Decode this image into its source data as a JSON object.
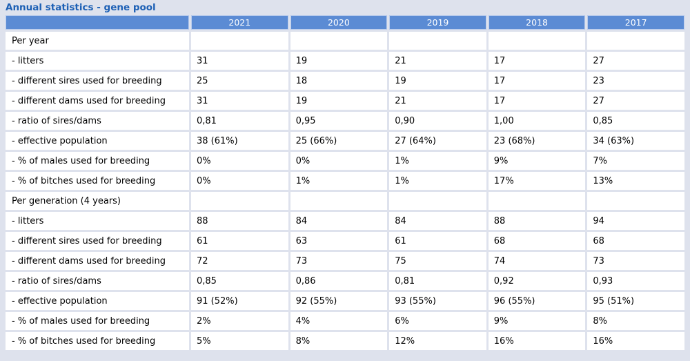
{
  "title": "Annual statistics - gene pool",
  "colors": {
    "page_bg": "#dee2ed",
    "cell_bg": "#ffffff",
    "header_bg": "#5b8bd4",
    "header_text": "#ffffff",
    "title_text": "#1d60b5",
    "body_text": "#000000"
  },
  "table": {
    "year_headers": [
      "2021",
      "2020",
      "2019",
      "2018",
      "2017"
    ],
    "sections": [
      {
        "label": "Per year",
        "rows": [
          {
            "label": "- litters",
            "values": [
              "31",
              "19",
              "21",
              "17",
              "27"
            ]
          },
          {
            "label": "- different sires used for breeding",
            "values": [
              "25",
              "18",
              "19",
              "17",
              "23"
            ]
          },
          {
            "label": "- different dams used for breeding",
            "values": [
              "31",
              "19",
              "21",
              "17",
              "27"
            ]
          },
          {
            "label": "- ratio of sires/dams",
            "values": [
              "0,81",
              "0,95",
              "0,90",
              "1,00",
              "0,85"
            ]
          },
          {
            "label": "- effective population",
            "values": [
              "38 (61%)",
              "25 (66%)",
              "27 (64%)",
              "23 (68%)",
              "34 (63%)"
            ]
          },
          {
            "label": "- % of males used for breeding",
            "values": [
              "0%",
              "0%",
              "1%",
              "9%",
              "7%"
            ]
          },
          {
            "label": "- % of bitches used for breeding",
            "values": [
              "0%",
              "1%",
              "1%",
              "17%",
              "13%"
            ]
          }
        ]
      },
      {
        "label": "Per generation (4 years)",
        "rows": [
          {
            "label": "- litters",
            "values": [
              "88",
              "84",
              "84",
              "88",
              "94"
            ]
          },
          {
            "label": "- different sires used for breeding",
            "values": [
              "61",
              "63",
              "61",
              "68",
              "68"
            ]
          },
          {
            "label": "- different dams used for breeding",
            "values": [
              "72",
              "73",
              "75",
              "74",
              "73"
            ]
          },
          {
            "label": "- ratio of sires/dams",
            "values": [
              "0,85",
              "0,86",
              "0,81",
              "0,92",
              "0,93"
            ]
          },
          {
            "label": "- effective population",
            "values": [
              "91 (52%)",
              "92 (55%)",
              "93 (55%)",
              "96 (55%)",
              "95 (51%)"
            ]
          },
          {
            "label": "- % of males used for breeding",
            "values": [
              "2%",
              "4%",
              "6%",
              "9%",
              "8%"
            ]
          },
          {
            "label": "- % of bitches used for breeding",
            "values": [
              "5%",
              "8%",
              "12%",
              "16%",
              "16%"
            ]
          }
        ]
      }
    ]
  }
}
